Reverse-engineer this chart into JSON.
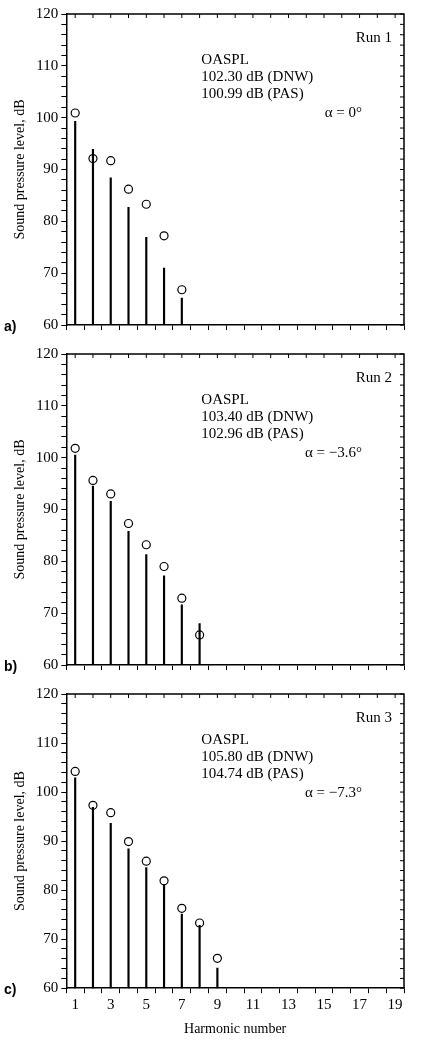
{
  "chart_data": [
    {
      "type": "bar",
      "ylabel": "Sound pressure level, dB",
      "annotations": [
        "Run 1",
        "OASPL",
        "102.30 dB (DNW)",
        "100.99 dB (PAS)",
        "α = 0°",
        "a)"
      ],
      "xlim": [
        0.5,
        19.5
      ],
      "xticks": [
        1,
        {
          "value": 2,
          "label": null
        },
        3,
        {
          "value": 4,
          "label": null
        },
        5,
        {
          "value": 6,
          "label": null
        },
        7,
        {
          "value": 8,
          "label": null
        },
        9,
        {
          "value": 10,
          "label": null
        },
        11,
        {
          "value": 12,
          "label": null
        },
        13,
        {
          "value": 14,
          "label": null
        },
        15,
        {
          "value": 16,
          "label": null
        },
        17,
        {
          "value": 18,
          "label": null
        },
        19
      ],
      "ylim": [
        60,
        120
      ],
      "yticks": [
        60,
        {
          "value": 62,
          "label": null
        },
        {
          "value": 64,
          "label": null
        },
        {
          "value": 66,
          "label": null
        },
        {
          "value": 68,
          "label": null
        },
        70,
        {
          "value": 72,
          "label": null
        },
        {
          "value": 74,
          "label": null
        },
        {
          "value": 76,
          "label": null
        },
        {
          "value": 78,
          "label": null
        },
        80,
        {
          "value": 82,
          "label": null
        },
        {
          "value": 84,
          "label": null
        },
        {
          "value": 86,
          "label": null
        },
        {
          "value": 88,
          "label": null
        },
        90,
        {
          "value": 92,
          "label": null
        },
        {
          "value": 94,
          "label": null
        },
        {
          "value": 96,
          "label": null
        },
        {
          "value": 98,
          "label": null
        },
        100,
        {
          "value": 102,
          "label": null
        },
        {
          "value": 104,
          "label": null
        },
        {
          "value": 106,
          "label": null
        },
        {
          "value": 108,
          "label": null
        },
        110,
        {
          "value": 112,
          "label": null
        },
        {
          "value": 114,
          "label": null
        },
        {
          "value": 116,
          "label": null
        },
        {
          "value": 118,
          "label": null
        },
        120
      ],
      "tick_labels": "y",
      "marker": "circle",
      "series": [
        {
          "color": "#000000",
          "x": [
            1,
            2,
            3,
            4,
            5,
            6,
            7
          ],
          "values": [
            99.3,
            93.9,
            88.4,
            82.7,
            76.9,
            71.0,
            65.2
          ]
        },
        {
          "type": "scatter",
          "color": "#000000",
          "x": [
            1,
            2,
            3,
            4,
            5,
            6,
            7
          ],
          "values": [
            100.9,
            92.1,
            91.7,
            86.2,
            83.3,
            77.2,
            66.8
          ]
        }
      ]
    },
    {
      "type": "bar",
      "ylabel": "Sound pressure level, dB",
      "annotations": [
        "Run 2",
        "OASPL",
        "103.40 dB (DNW)",
        "102.96 dB (PAS)",
        "α = −3.6°",
        "b)"
      ],
      "xlim": [
        0.5,
        19.5
      ],
      "xticks": [
        1,
        {
          "value": 2,
          "label": null
        },
        3,
        {
          "value": 4,
          "label": null
        },
        5,
        {
          "value": 6,
          "label": null
        },
        7,
        {
          "value": 8,
          "label": null
        },
        9,
        {
          "value": 10,
          "label": null
        },
        11,
        {
          "value": 12,
          "label": null
        },
        13,
        {
          "value": 14,
          "label": null
        },
        15,
        {
          "value": 16,
          "label": null
        },
        17,
        {
          "value": 18,
          "label": null
        },
        19
      ],
      "ylim": [
        60,
        120
      ],
      "yticks": [
        60,
        {
          "value": 62,
          "label": null
        },
        {
          "value": 64,
          "label": null
        },
        {
          "value": 66,
          "label": null
        },
        {
          "value": 68,
          "label": null
        },
        70,
        {
          "value": 72,
          "label": null
        },
        {
          "value": 74,
          "label": null
        },
        {
          "value": 76,
          "label": null
        },
        {
          "value": 78,
          "label": null
        },
        80,
        {
          "value": 82,
          "label": null
        },
        {
          "value": 84,
          "label": null
        },
        {
          "value": 86,
          "label": null
        },
        {
          "value": 88,
          "label": null
        },
        90,
        {
          "value": 92,
          "label": null
        },
        {
          "value": 94,
          "label": null
        },
        {
          "value": 96,
          "label": null
        },
        {
          "value": 98,
          "label": null
        },
        100,
        {
          "value": 102,
          "label": null
        },
        {
          "value": 104,
          "label": null
        },
        {
          "value": 106,
          "label": null
        },
        {
          "value": 108,
          "label": null
        },
        110,
        {
          "value": 112,
          "label": null
        },
        {
          "value": 114,
          "label": null
        },
        {
          "value": 116,
          "label": null
        },
        {
          "value": 118,
          "label": null
        },
        120
      ],
      "tick_labels": "y",
      "marker": "circle",
      "series": [
        {
          "color": "#000000",
          "x": [
            1,
            2,
            3,
            4,
            5,
            6,
            7,
            8
          ],
          "values": [
            100.5,
            94.5,
            91.6,
            85.8,
            81.3,
            77.2,
            71.6,
            68.0
          ]
        },
        {
          "type": "scatter",
          "color": "#000000",
          "x": [
            1,
            2,
            3,
            4,
            5,
            6,
            7,
            8
          ],
          "values": [
            101.8,
            95.6,
            93.0,
            87.3,
            83.2,
            79.0,
            72.9,
            65.8
          ]
        }
      ]
    },
    {
      "type": "bar",
      "xlabel": "Harmonic number",
      "ylabel": "Sound pressure level, dB",
      "annotations": [
        "Run 3",
        "OASPL",
        "105.80 dB (DNW)",
        "104.74 dB (PAS)",
        "α = −7.3°",
        "c)"
      ],
      "xlim": [
        0.5,
        19.5
      ],
      "xticks": [
        1,
        {
          "value": 2,
          "label": null
        },
        3,
        {
          "value": 4,
          "label": null
        },
        5,
        {
          "value": 6,
          "label": null
        },
        7,
        {
          "value": 8,
          "label": null
        },
        9,
        {
          "value": 10,
          "label": null
        },
        11,
        {
          "value": 12,
          "label": null
        },
        13,
        {
          "value": 14,
          "label": null
        },
        15,
        {
          "value": 16,
          "label": null
        },
        17,
        {
          "value": 18,
          "label": null
        },
        19
      ],
      "ylim": [
        60,
        120
      ],
      "yticks": [
        60,
        {
          "value": 62,
          "label": null
        },
        {
          "value": 64,
          "label": null
        },
        {
          "value": 66,
          "label": null
        },
        {
          "value": 68,
          "label": null
        },
        70,
        {
          "value": 72,
          "label": null
        },
        {
          "value": 74,
          "label": null
        },
        {
          "value": 76,
          "label": null
        },
        {
          "value": 78,
          "label": null
        },
        80,
        {
          "value": 82,
          "label": null
        },
        {
          "value": 84,
          "label": null
        },
        {
          "value": 86,
          "label": null
        },
        {
          "value": 88,
          "label": null
        },
        90,
        {
          "value": 92,
          "label": null
        },
        {
          "value": 94,
          "label": null
        },
        {
          "value": 96,
          "label": null
        },
        {
          "value": 98,
          "label": null
        },
        100,
        {
          "value": 102,
          "label": null
        },
        {
          "value": 104,
          "label": null
        },
        {
          "value": 106,
          "label": null
        },
        {
          "value": 108,
          "label": null
        },
        110,
        {
          "value": 112,
          "label": null
        },
        {
          "value": 114,
          "label": null
        },
        {
          "value": 116,
          "label": null
        },
        {
          "value": 118,
          "label": null
        },
        120
      ],
      "marker": "circle",
      "series": [
        {
          "color": "#000000",
          "x": [
            1,
            2,
            3,
            4,
            5,
            6,
            7,
            8,
            9
          ],
          "values": [
            102.9,
            96.9,
            93.6,
            88.4,
            84.6,
            81.1,
            75.1,
            72.8,
            64.1
          ]
        },
        {
          "type": "scatter",
          "color": "#000000",
          "x": [
            1,
            2,
            3,
            4,
            5,
            6,
            7,
            8,
            9
          ],
          "values": [
            104.2,
            97.3,
            95.8,
            89.9,
            85.9,
            81.9,
            76.3,
            73.3,
            66.1
          ]
        }
      ]
    }
  ]
}
